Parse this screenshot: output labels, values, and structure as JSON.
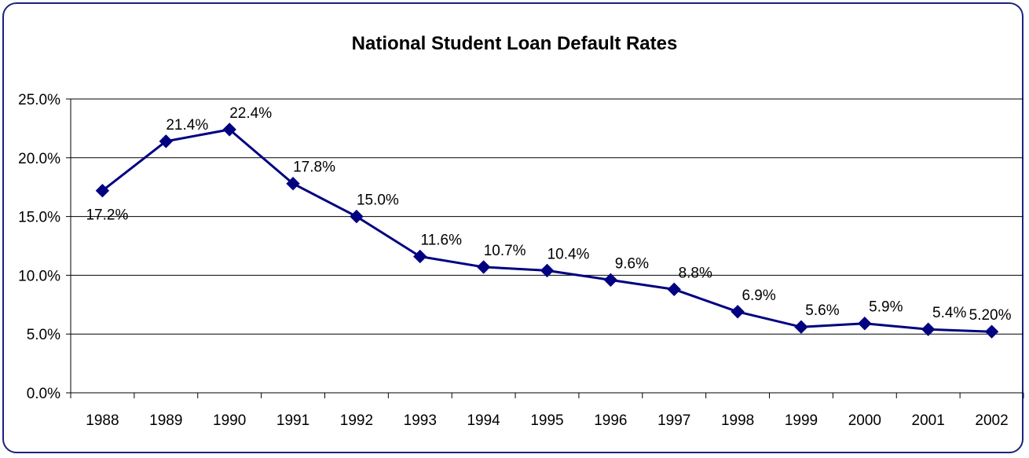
{
  "chart_data": {
    "type": "line",
    "title": "National Student Loan Default Rates",
    "xlabel": "",
    "ylabel": "",
    "ylim": [
      0,
      25
    ],
    "y_ticks": [
      "0.0%",
      "5.0%",
      "10.0%",
      "15.0%",
      "20.0%",
      "25.0%"
    ],
    "categories": [
      "1988",
      "1989",
      "1990",
      "1991",
      "1992",
      "1993",
      "1994",
      "1995",
      "1996",
      "1997",
      "1998",
      "1999",
      "2000",
      "2001",
      "2002"
    ],
    "values": [
      17.2,
      21.4,
      22.4,
      17.8,
      15.0,
      11.6,
      10.7,
      10.4,
      9.6,
      8.8,
      6.9,
      5.6,
      5.9,
      5.4,
      5.2
    ],
    "data_labels": [
      "17.2%",
      "21.4%",
      "22.4%",
      "17.8%",
      "15.0%",
      "11.6%",
      "10.7%",
      "10.4%",
      "9.6%",
      "8.8%",
      "6.9%",
      "5.6%",
      "5.9%",
      "5.4%",
      "5.20%"
    ],
    "grid": true,
    "legend": "none",
    "series_color": "#000080"
  }
}
